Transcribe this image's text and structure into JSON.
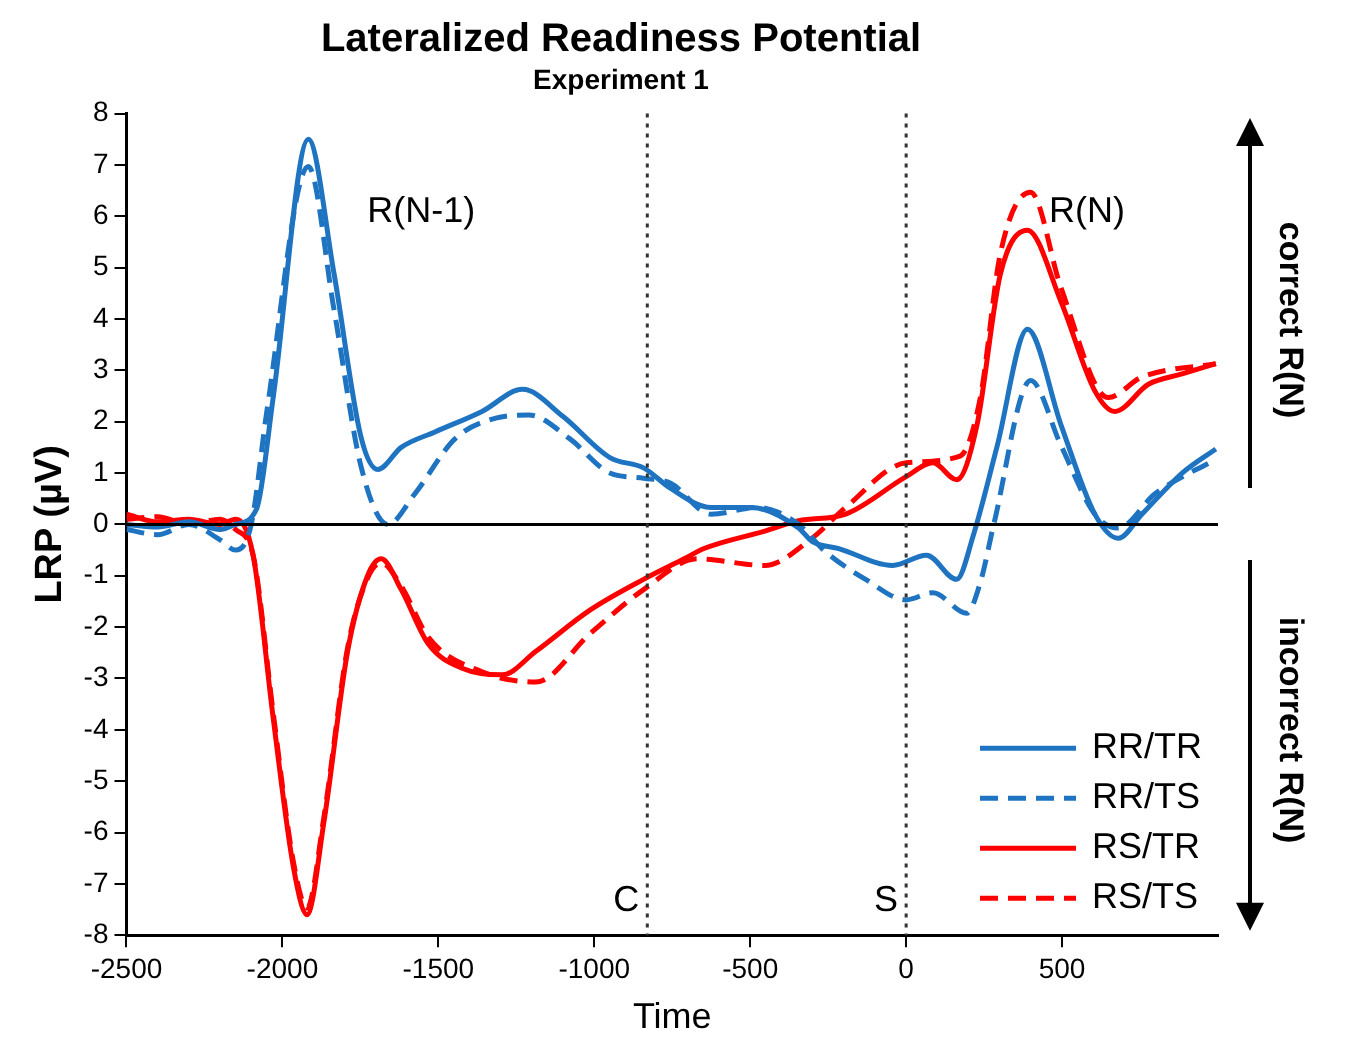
{
  "chart_data": {
    "type": "line",
    "title": "Lateralized Readiness Potential",
    "subtitle": "Experiment 1",
    "xlabel": "Time",
    "ylabel": "LRP (µV)",
    "xlim": [
      -2500,
      1000
    ],
    "xticks": [
      -2500,
      -2000,
      -1500,
      -1000,
      -500,
      0,
      500
    ],
    "ylim": [
      -8,
      8
    ],
    "yticks": [
      -8,
      -7,
      -6,
      -5,
      -4,
      -3,
      -2,
      -1,
      0,
      1,
      2,
      3,
      4,
      5,
      6,
      7,
      8
    ],
    "grid": false,
    "legend": "bottom right",
    "ref_lines": [
      {
        "axis": "y",
        "value": 0,
        "color": "#000000",
        "line_style": "solid"
      },
      {
        "axis": "x",
        "value": -830,
        "label": "C",
        "color": "#333333",
        "line_style": "dotted"
      },
      {
        "axis": "x",
        "value": 0,
        "label": "S",
        "color": "#333333",
        "line_style": "dotted"
      }
    ],
    "annotations": [
      "R(N-1)",
      "R(N)",
      "correct R(N)",
      "incorrect R(N)"
    ],
    "series": [
      {
        "name": "RR/TR",
        "color": "#1f74c2",
        "line_style": "solid",
        "x": [
          -2500,
          -2400,
          -2300,
          -2200,
          -2150,
          -2083,
          -2029,
          -1917,
          -1835,
          -1748,
          -1694,
          -1619,
          -1511,
          -1360,
          -1230,
          -1100,
          -950,
          -842,
          -755,
          -626,
          -497,
          -345,
          -302,
          -216,
          -43,
          65,
          162,
          216,
          292,
          389,
          497,
          605,
          680,
          756,
          885,
          993
        ],
        "values": [
          0,
          -0.05,
          0.05,
          -0.1,
          0,
          0.3,
          2.5,
          7.5,
          4.9,
          1.7,
          1.07,
          1.5,
          1.8,
          2.2,
          2.63,
          2.1,
          1.3,
          1.1,
          0.7,
          0.33,
          0.33,
          -0.07,
          -0.33,
          -0.47,
          -0.8,
          -0.6,
          -1.07,
          -0.2,
          1.53,
          3.8,
          1.93,
          0.2,
          -0.27,
          0.2,
          1,
          1.47
        ]
      },
      {
        "name": "RR/TS",
        "color": "#1f74c2",
        "line_style": "dashed",
        "x": [
          -2500,
          -2400,
          -2300,
          -2200,
          -2150,
          -2100,
          -2050,
          -1917,
          -1835,
          -1748,
          -1662,
          -1575,
          -1446,
          -1316,
          -1209,
          -1079,
          -950,
          -842,
          -755,
          -626,
          -475,
          -345,
          -259,
          -130,
          0,
          86,
          194,
          238,
          281,
          399,
          497,
          605,
          680,
          799,
          993
        ],
        "values": [
          -0.1,
          -0.2,
          0,
          -0.3,
          -0.5,
          0,
          2.2,
          6.97,
          4.2,
          1.13,
          0,
          0.6,
          1.67,
          2.07,
          2.13,
          1.67,
          1,
          0.9,
          0.8,
          0.2,
          0.33,
          0,
          -0.53,
          -1.07,
          -1.47,
          -1.33,
          -1.73,
          -1.13,
          0,
          2.8,
          1.53,
          0.2,
          -0.07,
          0.6,
          1.27
        ]
      },
      {
        "name": "RS/TR",
        "color": "#ff0000",
        "line_style": "solid",
        "x": [
          -2500,
          -2400,
          -2300,
          -2200,
          -2150,
          -2094,
          -2029,
          -1964,
          -1921,
          -1867,
          -1791,
          -1727,
          -1683,
          -1619,
          -1532,
          -1424,
          -1295,
          -1187,
          -1014,
          -842,
          -712,
          -648,
          -453,
          -345,
          -194,
          0,
          86,
          162,
          227,
          302,
          389,
          497,
          605,
          669,
          777,
          885,
          993
        ],
        "values": [
          0.2,
          0.05,
          0.1,
          0,
          0.1,
          -0.6,
          -3.8,
          -6.7,
          -7.6,
          -5.8,
          -2.47,
          -1,
          -0.67,
          -1.27,
          -2.33,
          -2.8,
          -2.93,
          -2.47,
          -1.67,
          -1.07,
          -0.67,
          -0.47,
          -0.13,
          0.07,
          0.2,
          0.93,
          1.2,
          0.87,
          1.93,
          4.87,
          5.73,
          4.33,
          2.6,
          2.2,
          2.73,
          2.93,
          3.13
        ]
      },
      {
        "name": "RS/TS",
        "color": "#ff0000",
        "line_style": "dashed",
        "x": [
          -2500,
          -2400,
          -2300,
          -2200,
          -2150,
          -2094,
          -2029,
          -1964,
          -1921,
          -1867,
          -1791,
          -1727,
          -1683,
          -1619,
          -1532,
          -1360,
          -1187,
          -1014,
          -842,
          -669,
          -453,
          -302,
          -194,
          0,
          173,
          238,
          302,
          399,
          497,
          648,
          756,
          993
        ],
        "values": [
          0.1,
          0.15,
          0,
          0.1,
          -0.1,
          -0.6,
          -3.7,
          -6.6,
          -7.47,
          -5.7,
          -2.4,
          -1.05,
          -0.75,
          -1.2,
          -2.2,
          -2.87,
          -3.07,
          -2.13,
          -1.27,
          -0.67,
          -0.8,
          -0.27,
          0.33,
          1.2,
          1.33,
          2.47,
          5.27,
          6.47,
          4.6,
          2.47,
          2.87,
          3.13
        ]
      }
    ]
  }
}
